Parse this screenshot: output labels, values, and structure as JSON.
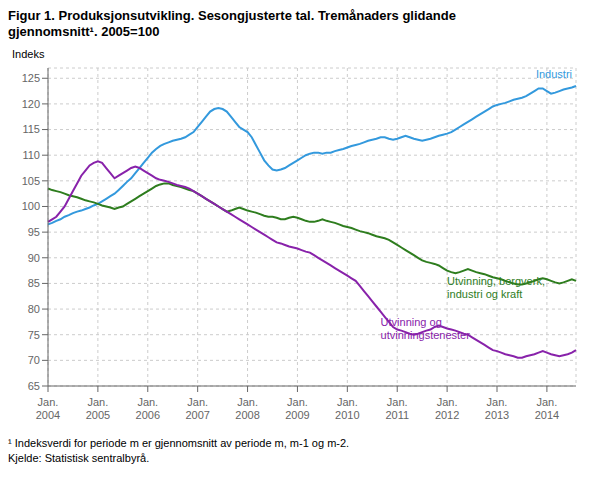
{
  "chart_data": {
    "type": "line",
    "title": "Figur 1. Produksjonsutvikling. Sesongjusterte tal. Tremånaders glidande\ngjennomsnitt¹. 2005=100",
    "ylabel": "Indeks",
    "annotations": [
      "¹ Indeksverdi for periode m er gjennomsnitt av periode m, m-1 og m-2.",
      "Kjelde: Statistisk sentralbyrå."
    ],
    "categories": [
      "Jan.\n2004",
      null,
      null,
      null,
      null,
      null,
      null,
      null,
      null,
      null,
      null,
      null,
      "Jan.\n2005",
      null,
      null,
      null,
      null,
      null,
      null,
      null,
      null,
      null,
      null,
      null,
      "Jan.\n2006",
      null,
      null,
      null,
      null,
      null,
      null,
      null,
      null,
      null,
      null,
      null,
      "Jan.\n2007",
      null,
      null,
      null,
      null,
      null,
      null,
      null,
      null,
      null,
      null,
      null,
      "Jan.\n2008",
      null,
      null,
      null,
      null,
      null,
      null,
      null,
      null,
      null,
      null,
      null,
      "Jan.\n2009",
      null,
      null,
      null,
      null,
      null,
      null,
      null,
      null,
      null,
      null,
      null,
      "Jan.\n2010",
      null,
      null,
      null,
      null,
      null,
      null,
      null,
      null,
      null,
      null,
      null,
      "Jan.\n2011",
      null,
      null,
      null,
      null,
      null,
      null,
      null,
      null,
      null,
      null,
      null,
      "Jan.\n2012",
      null,
      null,
      null,
      null,
      null,
      null,
      null,
      null,
      null,
      null,
      null,
      "Jan.\n2013",
      null,
      null,
      null,
      null,
      null,
      null,
      null,
      null,
      null,
      null,
      null,
      "Jan.\n2014",
      null,
      null,
      null,
      null,
      null,
      null,
      null
    ],
    "series": [
      {
        "name": "Industri",
        "color": "#3399dd",
        "values": [
          96.5,
          96.8,
          97.2,
          97.5,
          98.0,
          98.3,
          98.7,
          99.0,
          99.2,
          99.5,
          99.8,
          100.2,
          100.5,
          101.0,
          101.5,
          102.0,
          102.5,
          103.2,
          104.0,
          104.8,
          105.5,
          106.5,
          107.5,
          108.5,
          109.5,
          110.5,
          111.2,
          111.8,
          112.2,
          112.5,
          112.8,
          113.0,
          113.2,
          113.5,
          114.0,
          114.5,
          115.5,
          116.5,
          117.5,
          118.5,
          119.0,
          119.2,
          119.0,
          118.5,
          117.5,
          116.5,
          115.5,
          115.0,
          114.5,
          113.5,
          112.0,
          110.5,
          109.0,
          108.0,
          107.2,
          107.0,
          107.2,
          107.5,
          108.0,
          108.5,
          109.0,
          109.5,
          110.0,
          110.3,
          110.5,
          110.5,
          110.3,
          110.5,
          110.5,
          110.8,
          111.0,
          111.2,
          111.5,
          111.8,
          112.0,
          112.2,
          112.5,
          112.8,
          113.0,
          113.2,
          113.5,
          113.5,
          113.2,
          113.0,
          113.2,
          113.5,
          113.8,
          113.5,
          113.2,
          113.0,
          112.8,
          113.0,
          113.2,
          113.5,
          113.8,
          114.0,
          114.2,
          114.5,
          115.0,
          115.5,
          116.0,
          116.5,
          117.0,
          117.5,
          118.0,
          118.5,
          119.0,
          119.5,
          119.8,
          120.0,
          120.2,
          120.5,
          120.8,
          121.0,
          121.2,
          121.5,
          122.0,
          122.5,
          123.0,
          123.0,
          122.5,
          122.0,
          122.2,
          122.5,
          122.8,
          123.0,
          123.2,
          123.5
        ]
      },
      {
        "name": "Utvinning, bergverk,\nindustri og kraft",
        "color": "#2e7d1e",
        "values": [
          103.5,
          103.2,
          103.0,
          102.8,
          102.5,
          102.2,
          102.0,
          101.8,
          101.5,
          101.2,
          101.0,
          100.8,
          100.5,
          100.2,
          100.0,
          99.8,
          99.5,
          99.8,
          100.0,
          100.5,
          101.0,
          101.5,
          102.0,
          102.5,
          103.0,
          103.5,
          104.0,
          104.3,
          104.5,
          104.5,
          104.2,
          104.0,
          103.8,
          103.5,
          103.2,
          103.0,
          102.5,
          102.0,
          101.5,
          101.0,
          100.5,
          100.0,
          99.5,
          99.0,
          99.2,
          99.5,
          99.8,
          99.5,
          99.2,
          99.0,
          98.8,
          98.5,
          98.2,
          98.0,
          98.0,
          97.8,
          97.5,
          97.5,
          97.8,
          98.0,
          97.8,
          97.5,
          97.2,
          97.0,
          97.0,
          97.2,
          97.5,
          97.2,
          97.0,
          96.8,
          96.5,
          96.2,
          96.0,
          95.8,
          95.5,
          95.2,
          95.0,
          94.8,
          94.5,
          94.2,
          94.0,
          93.8,
          93.5,
          93.0,
          92.5,
          92.0,
          91.5,
          91.0,
          90.5,
          90.0,
          89.5,
          89.2,
          89.0,
          88.8,
          88.5,
          88.0,
          87.5,
          87.2,
          87.0,
          87.2,
          87.5,
          87.8,
          87.5,
          87.2,
          87.0,
          86.8,
          86.5,
          86.2,
          86.0,
          85.8,
          85.5,
          85.2,
          85.0,
          84.8,
          84.8,
          85.0,
          85.2,
          85.5,
          85.8,
          86.0,
          85.8,
          85.5,
          85.2,
          85.0,
          85.2,
          85.5,
          85.8,
          85.5
        ]
      },
      {
        "name": "Utvinning og\nutvinningstenester",
        "color": "#8822aa",
        "values": [
          97.0,
          97.5,
          98.0,
          99.0,
          100.0,
          101.5,
          103.0,
          104.5,
          106.0,
          107.0,
          108.0,
          108.5,
          108.8,
          108.5,
          107.5,
          106.5,
          105.5,
          106.0,
          106.5,
          107.0,
          107.5,
          107.8,
          107.5,
          107.0,
          106.5,
          106.0,
          105.5,
          105.2,
          105.0,
          104.8,
          104.5,
          104.2,
          104.0,
          103.8,
          103.5,
          103.0,
          102.5,
          102.0,
          101.5,
          101.0,
          100.5,
          100.0,
          99.5,
          99.0,
          98.5,
          98.0,
          97.5,
          97.0,
          96.5,
          96.0,
          95.5,
          95.0,
          94.5,
          94.0,
          93.5,
          93.0,
          92.8,
          92.5,
          92.2,
          92.0,
          91.8,
          91.5,
          91.2,
          91.0,
          90.5,
          90.0,
          89.5,
          89.0,
          88.5,
          88.0,
          87.5,
          87.0,
          86.5,
          86.0,
          85.5,
          84.5,
          83.5,
          82.5,
          81.5,
          80.5,
          79.5,
          78.5,
          77.5,
          76.5,
          76.0,
          75.8,
          75.5,
          75.2,
          75.0,
          75.2,
          75.5,
          75.8,
          76.0,
          76.5,
          76.8,
          76.5,
          76.2,
          76.0,
          75.8,
          75.5,
          75.2,
          75.0,
          74.5,
          74.0,
          73.5,
          73.0,
          72.5,
          72.0,
          71.8,
          71.5,
          71.2,
          71.0,
          70.8,
          70.5,
          70.5,
          70.8,
          71.0,
          71.2,
          71.5,
          71.8,
          71.5,
          71.2,
          71.0,
          70.8,
          71.0,
          71.2,
          71.5,
          72.0
        ]
      }
    ],
    "ylim": [
      65,
      127
    ],
    "yticks": [
      65,
      70,
      75,
      80,
      85,
      90,
      95,
      100,
      105,
      110,
      115,
      120,
      125
    ],
    "grid": true
  }
}
